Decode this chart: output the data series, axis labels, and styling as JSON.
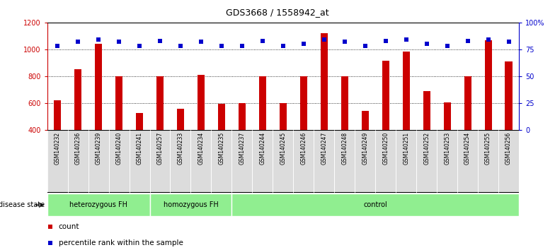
{
  "title": "GDS3668 / 1558942_at",
  "samples": [
    "GSM140232",
    "GSM140236",
    "GSM140239",
    "GSM140240",
    "GSM140241",
    "GSM140257",
    "GSM140233",
    "GSM140234",
    "GSM140235",
    "GSM140237",
    "GSM140244",
    "GSM140245",
    "GSM140246",
    "GSM140247",
    "GSM140248",
    "GSM140249",
    "GSM140250",
    "GSM140251",
    "GSM140252",
    "GSM140253",
    "GSM140254",
    "GSM140255",
    "GSM140256"
  ],
  "counts": [
    620,
    855,
    1040,
    800,
    525,
    800,
    560,
    810,
    595,
    600,
    800,
    600,
    800,
    1120,
    800,
    540,
    915,
    985,
    690,
    605,
    800,
    1070,
    910
  ],
  "percentile_rank": [
    78,
    82,
    84,
    82,
    78,
    83,
    78,
    82,
    78,
    78,
    83,
    78,
    80,
    84,
    82,
    78,
    83,
    84,
    80,
    78,
    83,
    84,
    82
  ],
  "groups_info": [
    {
      "label": "heterozygous FH",
      "start": 0,
      "end": 5
    },
    {
      "label": "homozygous FH",
      "start": 5,
      "end": 9
    },
    {
      "label": "control",
      "start": 9,
      "end": 23
    }
  ],
  "bar_color": "#CC0000",
  "dot_color": "#0000CC",
  "ylim_left": [
    400,
    1200
  ],
  "ylim_right": [
    0,
    100
  ],
  "yticks_left": [
    400,
    600,
    800,
    1000,
    1200
  ],
  "yticks_right": [
    0,
    25,
    50,
    75,
    100
  ],
  "grid_values": [
    600,
    800,
    1000
  ],
  "plot_bg_color": "#FFFFFF",
  "xtick_bg_color": "#DCDCDC",
  "group_color": "#90EE90",
  "legend_count_color": "#CC0000",
  "legend_dot_color": "#0000CC"
}
